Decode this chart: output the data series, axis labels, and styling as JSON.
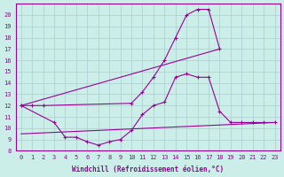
{
  "background_color": "#cceee8",
  "grid_color": "#bbdddd",
  "line_color": "#990099",
  "xlabel": "Windchill (Refroidissement éolien,°C)",
  "xlim": [
    -0.5,
    23.5
  ],
  "ylim": [
    8,
    21
  ],
  "yticks": [
    8,
    9,
    10,
    11,
    12,
    13,
    14,
    15,
    16,
    17,
    18,
    19,
    20
  ],
  "xticks": [
    0,
    1,
    2,
    3,
    4,
    5,
    6,
    7,
    8,
    9,
    10,
    11,
    12,
    13,
    14,
    15,
    16,
    17,
    18,
    19,
    20,
    21,
    22,
    23
  ],
  "line1_x": [
    0,
    1,
    2,
    10,
    11,
    12,
    13,
    14,
    15,
    16,
    17,
    18
  ],
  "line1_y": [
    12,
    12,
    12,
    12.2,
    13.2,
    14.5,
    16.0,
    18.0,
    20.0,
    20.5,
    20.5,
    17.0
  ],
  "line2_x": [
    0,
    18
  ],
  "line2_y": [
    12,
    17.0
  ],
  "line3_x": [
    0,
    3,
    4,
    5,
    6,
    7,
    8,
    9,
    10,
    11,
    12,
    13,
    14,
    15,
    16,
    17,
    18,
    19,
    20,
    21,
    22,
    23
  ],
  "line3_y": [
    12,
    10.5,
    9.2,
    9.2,
    8.8,
    8.5,
    8.8,
    9.0,
    9.8,
    11.2,
    12.0,
    12.3,
    14.5,
    14.8,
    14.5,
    14.5,
    11.5,
    10.5,
    10.5,
    10.5,
    10.5,
    10.5
  ],
  "line4_x": [
    0,
    23
  ],
  "line4_y": [
    9.5,
    10.5
  ]
}
